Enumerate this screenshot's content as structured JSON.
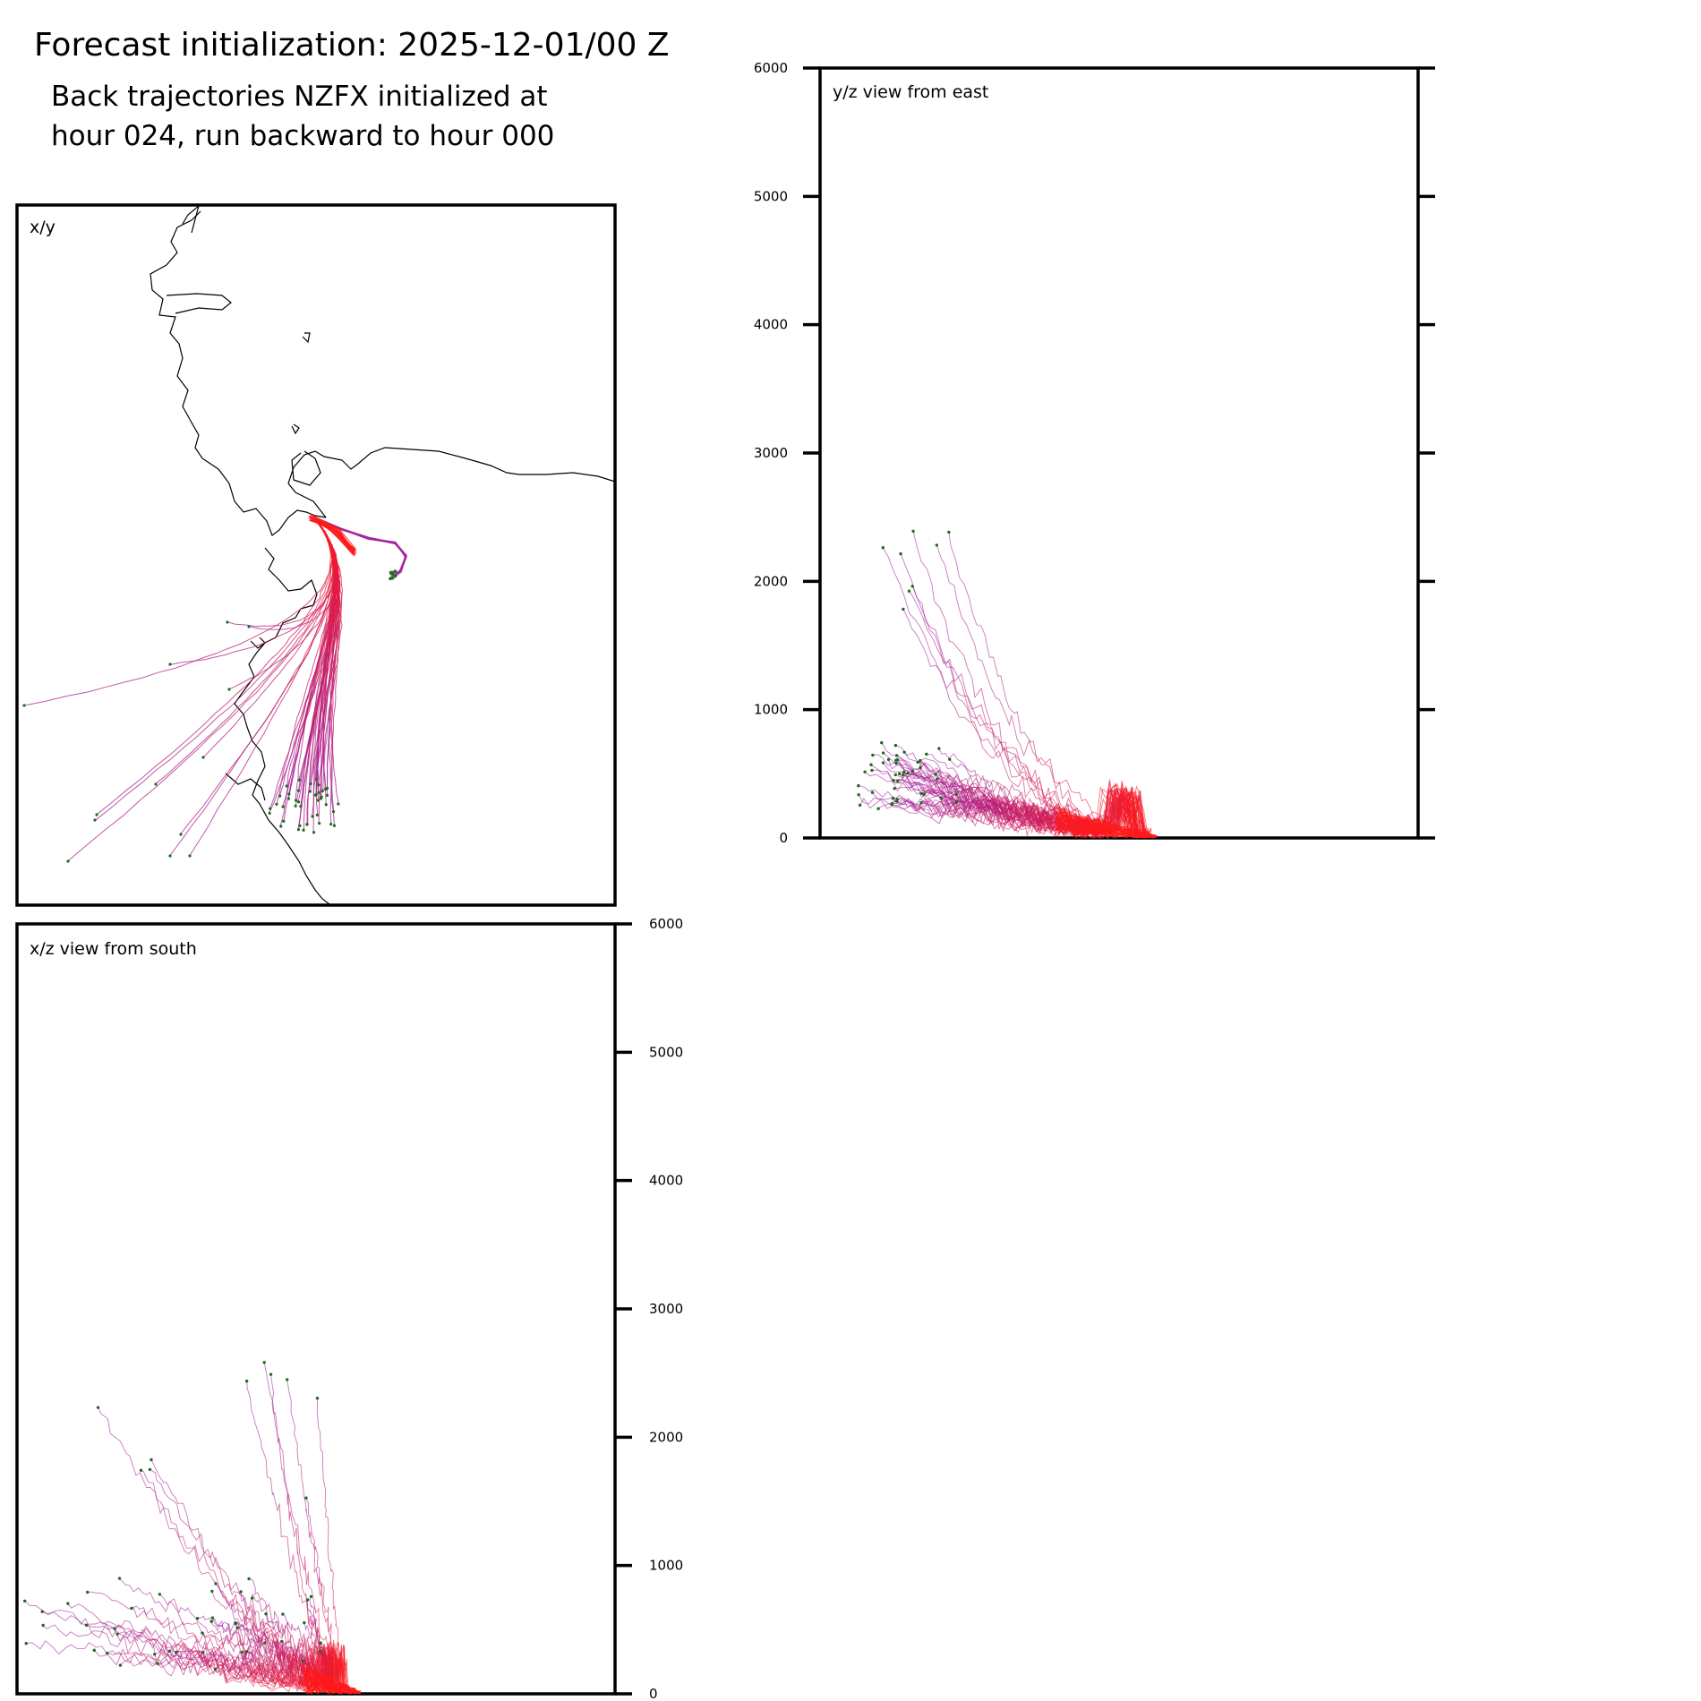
{
  "header": {
    "title": "Forecast initialization: 2025-12-01/00 Z",
    "subtitle_line1": "Back trajectories NZFX initialized at",
    "subtitle_line2": "hour 024, run backward to hour 000"
  },
  "colors": {
    "late_trajectory": "#ff1a1a",
    "early_trajectory": "#a0209b",
    "start_marker": "#1e6b1e",
    "coastline": "#000000"
  },
  "chart_data": [
    {
      "type": "line",
      "panel": "map",
      "label": "x/y",
      "description_units": "normalized plan-view coordinates",
      "coastline": true
    },
    {
      "type": "line",
      "panel": "yz",
      "label": "y/z view from east",
      "ylim": [
        0,
        6000
      ],
      "yticks": [
        0,
        1000,
        2000,
        3000,
        4000,
        5000,
        6000
      ],
      "ylabel": ""
    },
    {
      "type": "line",
      "panel": "xz",
      "label": "x/z view from south",
      "ylim": [
        0,
        6000
      ],
      "yticks": [
        0,
        1000,
        2000,
        3000,
        4000,
        5000,
        6000
      ],
      "ylabel": ""
    }
  ]
}
